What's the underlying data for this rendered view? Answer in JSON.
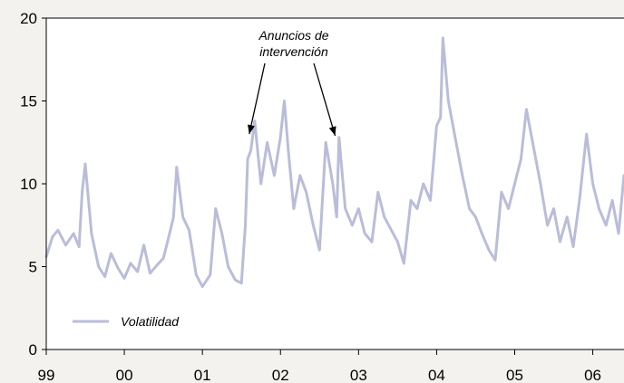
{
  "chart_data": {
    "type": "line",
    "title": "",
    "xlabel": "",
    "ylabel": "",
    "ylim": [
      0,
      20
    ],
    "y_ticks": [
      0,
      5,
      10,
      15,
      20
    ],
    "x_ticks": [
      "99",
      "00",
      "01",
      "02",
      "03",
      "04",
      "05",
      "06"
    ],
    "xlim": [
      1999.0,
      2006.4
    ],
    "grid": false,
    "legend_position": "bottom-left",
    "colors": {
      "series": "#b9bdd9",
      "axis": "#000000",
      "plot_bg": "#ffffff",
      "page_bg": "#f4f2ee"
    },
    "annotation": {
      "lines": [
        "Anuncios de",
        "intervención"
      ],
      "arrow_targets": [
        {
          "x": 2001.6,
          "y": 13.0
        },
        {
          "x": 2002.7,
          "y": 12.9
        }
      ]
    },
    "series": [
      {
        "name": "Volatilidad",
        "x": [
          1999.0,
          1999.08,
          1999.15,
          1999.25,
          1999.35,
          1999.42,
          1999.46,
          1999.5,
          1999.58,
          1999.67,
          1999.75,
          1999.83,
          1999.92,
          2000.0,
          2000.08,
          2000.17,
          2000.25,
          2000.33,
          2000.42,
          2000.5,
          2000.58,
          2000.63,
          2000.67,
          2000.75,
          2000.83,
          2000.92,
          2001.0,
          2001.1,
          2001.17,
          2001.25,
          2001.33,
          2001.42,
          2001.5,
          2001.55,
          2001.58,
          2001.62,
          2001.67,
          2001.75,
          2001.83,
          2001.92,
          2002.0,
          2002.05,
          2002.1,
          2002.17,
          2002.25,
          2002.33,
          2002.42,
          2002.5,
          2002.58,
          2002.67,
          2002.72,
          2002.75,
          2002.83,
          2002.92,
          2003.0,
          2003.08,
          2003.17,
          2003.25,
          2003.33,
          2003.42,
          2003.5,
          2003.58,
          2003.67,
          2003.75,
          2003.83,
          2003.92,
          2004.0,
          2004.05,
          2004.08,
          2004.15,
          2004.25,
          2004.33,
          2004.42,
          2004.5,
          2004.58,
          2004.67,
          2004.75,
          2004.83,
          2004.92,
          2005.0,
          2005.08,
          2005.15,
          2005.25,
          2005.33,
          2005.42,
          2005.5,
          2005.58,
          2005.67,
          2005.75,
          2005.83,
          2005.92,
          2006.0,
          2006.08,
          2006.17,
          2006.25,
          2006.33,
          2006.4
        ],
        "y": [
          5.6,
          6.8,
          7.2,
          6.3,
          7.0,
          6.2,
          9.5,
          11.2,
          7.0,
          5.0,
          4.4,
          5.8,
          4.9,
          4.3,
          5.2,
          4.7,
          6.3,
          4.6,
          5.1,
          5.5,
          7.0,
          8.0,
          11.0,
          8.0,
          7.2,
          4.5,
          3.8,
          4.5,
          8.5,
          7.0,
          5.0,
          4.2,
          4.0,
          7.5,
          11.5,
          12.0,
          13.8,
          10.0,
          12.5,
          10.5,
          12.8,
          15.0,
          12.0,
          8.5,
          10.5,
          9.5,
          7.5,
          6.0,
          12.5,
          10.0,
          8.0,
          12.8,
          8.5,
          7.5,
          8.5,
          7.0,
          6.5,
          9.5,
          8.0,
          7.2,
          6.5,
          5.2,
          9.0,
          8.5,
          10.0,
          9.0,
          13.5,
          14.0,
          18.8,
          15.0,
          12.5,
          10.5,
          8.5,
          8.0,
          7.0,
          6.0,
          5.4,
          9.5,
          8.5,
          10.0,
          11.5,
          14.5,
          12.0,
          10.0,
          7.5,
          8.5,
          6.5,
          8.0,
          6.2,
          9.0,
          13.0,
          10.0,
          8.5,
          7.5,
          9.0,
          7.0,
          10.5
        ]
      }
    ]
  }
}
